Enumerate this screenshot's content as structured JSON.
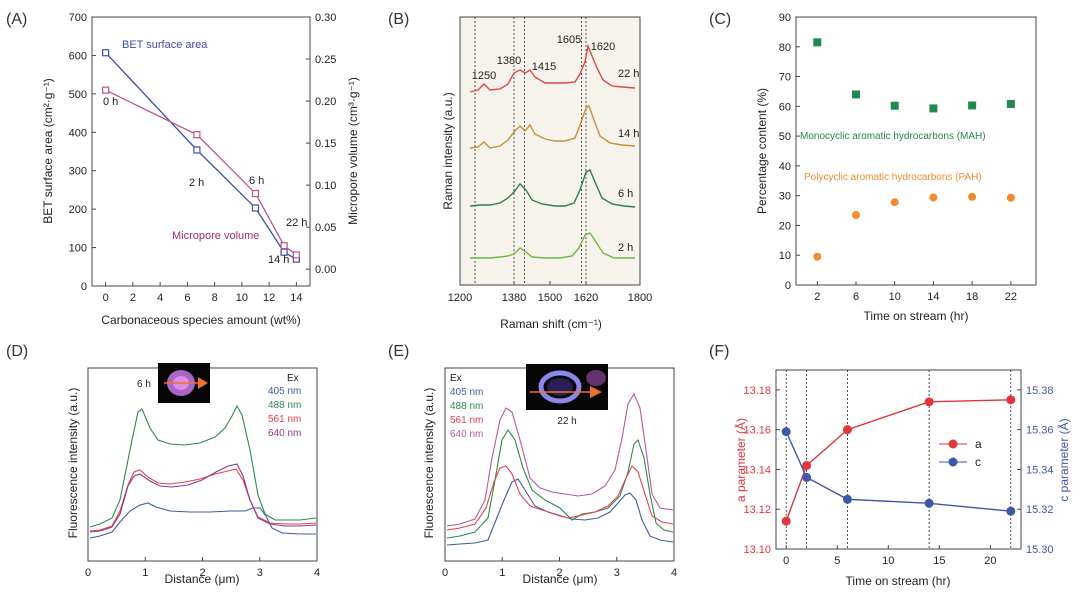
{
  "chart_data": [
    {
      "panel": "(A)",
      "type": "line",
      "xlabel": "Carbonaceous species amount (wt%)",
      "ylabel": "BET surface area (cm²·g⁻¹)",
      "ylabel_right": "Micropore volume (cm³·g⁻¹)",
      "xlim": [
        -1,
        15
      ],
      "ylim": [
        0,
        700
      ],
      "ylim_right": [
        -0.02,
        0.3
      ],
      "xticks": [
        0,
        2,
        4,
        6,
        8,
        10,
        12,
        14
      ],
      "xtick_labels": [
        "0",
        "2",
        "4",
        "6",
        "8",
        "10",
        "12",
        "14"
      ],
      "yticks": [
        0,
        100,
        200,
        300,
        400,
        500,
        600,
        700
      ],
      "ytick_labels": [
        "0",
        "100",
        "200",
        "300",
        "400",
        "500",
        "600",
        "700"
      ],
      "yticks_right": [
        0,
        0.05,
        0.1,
        0.15,
        0.2,
        0.25,
        0.3
      ],
      "ytick_labels_right": [
        "0.00",
        "0.05",
        "0.10",
        "0.15",
        "0.20",
        "0.25",
        "0.30"
      ],
      "series": [
        {
          "name": "BET surface area",
          "axis": "left",
          "color": "#3c4fa8",
          "x": [
            0,
            6.7,
            11,
            13.1,
            14
          ],
          "y": [
            607,
            354,
            203,
            88,
            70
          ]
        },
        {
          "name": "Micropore volume",
          "axis": "right",
          "color": "#c0508f",
          "x": [
            0,
            6.7,
            11,
            13.1,
            14
          ],
          "y": [
            0.213,
            0.16,
            0.09,
            0.028,
            0.017
          ]
        }
      ],
      "annotations": {
        "series1": "BET surface area",
        "series2": "Micropore volume",
        "t0": "0 h",
        "t2": "2 h",
        "t6": "6 h",
        "t14": "14 h",
        "t22": "22 h"
      }
    },
    {
      "panel": "(B)",
      "type": "line",
      "xlabel": "Raman shift (cm⁻¹)",
      "ylabel": "Raman intensity (a.u.)",
      "xlim": [
        1200,
        1800
      ],
      "xticks": [
        1200,
        1380,
        1500,
        1620,
        1800
      ],
      "xtick_labels": [
        "1200",
        "1380",
        "1500",
        "1620",
        "1800"
      ],
      "reference_lines": [
        1250,
        1380,
        1415,
        1605,
        1620
      ],
      "peak_labels": [
        "1250",
        "1380",
        "1415",
        "1605",
        "1620"
      ],
      "series": [
        {
          "name": "22 h",
          "color": "#e04848"
        },
        {
          "name": "14 h",
          "color": "#c7903a"
        },
        {
          "name": "6 h",
          "color": "#2f7e4e"
        },
        {
          "name": "2 h",
          "color": "#6cb84a"
        }
      ]
    },
    {
      "panel": "(C)",
      "type": "scatter",
      "xlabel": "Time on stream (hr)",
      "ylabel": "Percentage content (%)",
      "categories": [
        "2",
        "6",
        "10",
        "14",
        "18",
        "22"
      ],
      "ylim": [
        0,
        90
      ],
      "yticks": [
        0,
        10,
        20,
        30,
        40,
        50,
        60,
        70,
        80,
        90
      ],
      "ytick_labels": [
        "0",
        "10",
        "20",
        "30",
        "40",
        "50",
        "60",
        "70",
        "80",
        "90"
      ],
      "series": [
        {
          "name": "Monocyclic aromatic hydrocarbons (MAH)",
          "color": "#1f8a4c",
          "values": [
            81.5,
            64,
            60.2,
            59.3,
            60.3,
            60.8
          ]
        },
        {
          "name": "Polycyclic aromatic hydrocarbons (PAH)",
          "color": "#f28a2e",
          "values": [
            9.5,
            23.5,
            27.8,
            29.4,
            29.6,
            29.3
          ]
        }
      ]
    },
    {
      "panel": "(D)",
      "type": "line",
      "xlabel": "Distance (μm)",
      "ylabel": "Fluorescence intensity (a.u.)",
      "xlim": [
        0,
        4
      ],
      "xticks": [
        0,
        1,
        2,
        3,
        4
      ],
      "xtick_labels": [
        "0",
        "1",
        "2",
        "3",
        "4"
      ],
      "legend_title": "Ex",
      "inset_label": "6 h",
      "series": [
        {
          "name": "405 nm",
          "color": "#3f5ba9"
        },
        {
          "name": "488 nm",
          "color": "#2d8a49"
        },
        {
          "name": "561 nm",
          "color": "#e2424f"
        },
        {
          "name": "640 nm",
          "color": "#8b3a8e"
        }
      ]
    },
    {
      "panel": "(E)",
      "type": "line",
      "xlabel": "Distance (μm)",
      "ylabel": "Fluorescence intensity (a.u.)",
      "xlim": [
        0,
        4
      ],
      "xticks": [
        0,
        1,
        2,
        3,
        4
      ],
      "xtick_labels": [
        "0",
        "1",
        "2",
        "3",
        "4"
      ],
      "legend_title": "Ex",
      "inset_label": "22 h",
      "series": [
        {
          "name": "405 nm",
          "color": "#3f5ba9"
        },
        {
          "name": "488 nm",
          "color": "#2d8a49"
        },
        {
          "name": "561 nm",
          "color": "#e2424f"
        },
        {
          "name": "640 nm",
          "color": "#b55a9c"
        }
      ]
    },
    {
      "panel": "(F)",
      "type": "line",
      "xlabel": "Time on stream (hr)",
      "ylabel": "a parameter (Å)",
      "ylabel_right": "c parameter (Å)",
      "xlim": [
        -1,
        23
      ],
      "ylim": [
        13.1,
        13.19
      ],
      "ylim_right": [
        15.3,
        15.39
      ],
      "xticks": [
        0,
        5,
        10,
        15,
        20
      ],
      "xtick_labels": [
        "0",
        "5",
        "10",
        "15",
        "20"
      ],
      "yticks": [
        13.1,
        13.12,
        13.14,
        13.16,
        13.18
      ],
      "ytick_labels": [
        "13.10",
        "13.12",
        "13.14",
        "13.16",
        "13.18"
      ],
      "yticks_right": [
        15.3,
        15.32,
        15.34,
        15.36,
        15.38
      ],
      "ytick_labels_right": [
        "15.30",
        "15.32",
        "15.34",
        "15.36",
        "15.38"
      ],
      "reference_lines": [
        0,
        2,
        6,
        14,
        22
      ],
      "series": [
        {
          "name": "a",
          "axis": "left",
          "color": "#e2353d",
          "x": [
            0,
            2,
            6,
            14,
            22
          ],
          "y": [
            13.114,
            13.142,
            13.16,
            13.174,
            13.175
          ]
        },
        {
          "name": "c",
          "axis": "right",
          "color": "#3f57a8",
          "x": [
            0,
            2,
            6,
            14,
            22
          ],
          "y": [
            15.359,
            15.336,
            15.325,
            15.323,
            15.319
          ]
        }
      ]
    }
  ]
}
